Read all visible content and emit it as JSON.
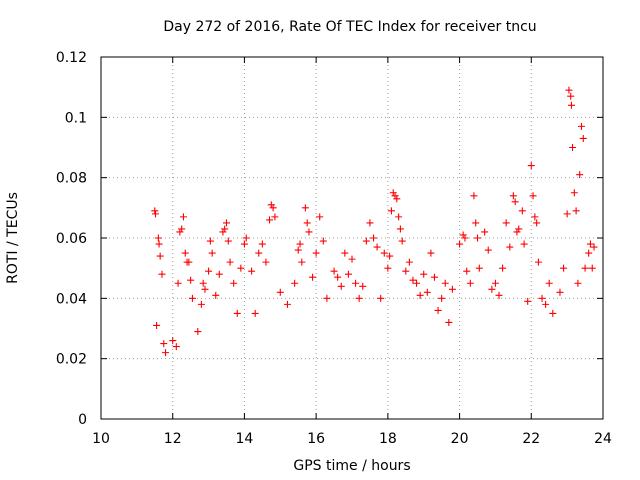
{
  "chart_data": {
    "type": "scatter",
    "title": "Day 272 of 2016, Rate Of TEC Index for receiver tncu",
    "xlabel": "GPS time / hours",
    "ylabel": "ROTI / TECUs",
    "xlim": [
      10,
      24
    ],
    "ylim": [
      0,
      0.12
    ],
    "x_ticks": [
      10,
      12,
      14,
      16,
      18,
      20,
      22,
      24
    ],
    "x_tick_labels": [
      "10",
      "12",
      "14",
      "16",
      "18",
      "20",
      "22",
      "24"
    ],
    "y_ticks": [
      0,
      0.02,
      0.04,
      0.06,
      0.08,
      0.1,
      0.12
    ],
    "y_tick_labels": [
      "0",
      "0.02",
      "0.04",
      "0.06",
      "0.08",
      "0.1",
      "0.12"
    ],
    "grid": true,
    "marker": "+",
    "color": "#ff0000",
    "series": [
      {
        "name": "ROTI",
        "points": [
          [
            11.5,
            0.069
          ],
          [
            11.52,
            0.068
          ],
          [
            11.55,
            0.031
          ],
          [
            11.6,
            0.06
          ],
          [
            11.62,
            0.058
          ],
          [
            11.65,
            0.054
          ],
          [
            11.7,
            0.048
          ],
          [
            11.75,
            0.025
          ],
          [
            11.8,
            0.022
          ],
          [
            12.0,
            0.026
          ],
          [
            12.1,
            0.024
          ],
          [
            12.15,
            0.045
          ],
          [
            12.2,
            0.062
          ],
          [
            12.25,
            0.063
          ],
          [
            12.3,
            0.067
          ],
          [
            12.35,
            0.055
          ],
          [
            12.4,
            0.052
          ],
          [
            12.45,
            0.052
          ],
          [
            12.5,
            0.046
          ],
          [
            12.55,
            0.04
          ],
          [
            12.7,
            0.029
          ],
          [
            12.8,
            0.038
          ],
          [
            12.85,
            0.045
          ],
          [
            12.9,
            0.043
          ],
          [
            13.0,
            0.049
          ],
          [
            13.05,
            0.059
          ],
          [
            13.1,
            0.055
          ],
          [
            13.2,
            0.041
          ],
          [
            13.3,
            0.048
          ],
          [
            13.4,
            0.062
          ],
          [
            13.45,
            0.063
          ],
          [
            13.5,
            0.065
          ],
          [
            13.55,
            0.059
          ],
          [
            13.6,
            0.052
          ],
          [
            13.7,
            0.045
          ],
          [
            13.8,
            0.035
          ],
          [
            13.9,
            0.05
          ],
          [
            14.0,
            0.058
          ],
          [
            14.05,
            0.06
          ],
          [
            14.2,
            0.049
          ],
          [
            14.3,
            0.035
          ],
          [
            14.4,
            0.055
          ],
          [
            14.5,
            0.058
          ],
          [
            14.6,
            0.052
          ],
          [
            14.7,
            0.066
          ],
          [
            14.75,
            0.071
          ],
          [
            14.8,
            0.07
          ],
          [
            14.85,
            0.067
          ],
          [
            15.0,
            0.042
          ],
          [
            15.2,
            0.038
          ],
          [
            15.4,
            0.045
          ],
          [
            15.5,
            0.056
          ],
          [
            15.55,
            0.058
          ],
          [
            15.6,
            0.052
          ],
          [
            15.7,
            0.07
          ],
          [
            15.75,
            0.065
          ],
          [
            15.8,
            0.062
          ],
          [
            15.9,
            0.047
          ],
          [
            16.0,
            0.055
          ],
          [
            16.1,
            0.067
          ],
          [
            16.2,
            0.059
          ],
          [
            16.3,
            0.04
          ],
          [
            16.5,
            0.049
          ],
          [
            16.6,
            0.047
          ],
          [
            16.7,
            0.044
          ],
          [
            16.8,
            0.055
          ],
          [
            16.9,
            0.048
          ],
          [
            17.0,
            0.053
          ],
          [
            17.1,
            0.045
          ],
          [
            17.2,
            0.04
          ],
          [
            17.3,
            0.044
          ],
          [
            17.4,
            0.059
          ],
          [
            17.5,
            0.065
          ],
          [
            17.6,
            0.06
          ],
          [
            17.7,
            0.057
          ],
          [
            17.8,
            0.04
          ],
          [
            17.9,
            0.055
          ],
          [
            18.0,
            0.05
          ],
          [
            18.05,
            0.054
          ],
          [
            18.1,
            0.069
          ],
          [
            18.15,
            0.075
          ],
          [
            18.2,
            0.074
          ],
          [
            18.25,
            0.073
          ],
          [
            18.3,
            0.067
          ],
          [
            18.35,
            0.063
          ],
          [
            18.4,
            0.059
          ],
          [
            18.5,
            0.049
          ],
          [
            18.6,
            0.052
          ],
          [
            18.7,
            0.046
          ],
          [
            18.8,
            0.045
          ],
          [
            18.9,
            0.041
          ],
          [
            19.0,
            0.048
          ],
          [
            19.1,
            0.042
          ],
          [
            19.2,
            0.055
          ],
          [
            19.3,
            0.047
          ],
          [
            19.4,
            0.036
          ],
          [
            19.5,
            0.04
          ],
          [
            19.6,
            0.045
          ],
          [
            19.7,
            0.032
          ],
          [
            19.8,
            0.043
          ],
          [
            20.0,
            0.058
          ],
          [
            20.1,
            0.061
          ],
          [
            20.15,
            0.06
          ],
          [
            20.2,
            0.049
          ],
          [
            20.3,
            0.045
          ],
          [
            20.4,
            0.074
          ],
          [
            20.45,
            0.065
          ],
          [
            20.5,
            0.06
          ],
          [
            20.55,
            0.05
          ],
          [
            20.7,
            0.062
          ],
          [
            20.8,
            0.056
          ],
          [
            20.9,
            0.043
          ],
          [
            21.0,
            0.045
          ],
          [
            21.1,
            0.041
          ],
          [
            21.2,
            0.05
          ],
          [
            21.3,
            0.065
          ],
          [
            21.4,
            0.057
          ],
          [
            21.5,
            0.074
          ],
          [
            21.55,
            0.072
          ],
          [
            21.6,
            0.062
          ],
          [
            21.65,
            0.063
          ],
          [
            21.75,
            0.069
          ],
          [
            21.8,
            0.058
          ],
          [
            21.9,
            0.039
          ],
          [
            22.0,
            0.084
          ],
          [
            22.05,
            0.074
          ],
          [
            22.1,
            0.067
          ],
          [
            22.15,
            0.065
          ],
          [
            22.2,
            0.052
          ],
          [
            22.3,
            0.04
          ],
          [
            22.4,
            0.038
          ],
          [
            22.5,
            0.045
          ],
          [
            22.6,
            0.035
          ],
          [
            22.8,
            0.042
          ],
          [
            22.9,
            0.05
          ],
          [
            23.0,
            0.068
          ],
          [
            23.05,
            0.109
          ],
          [
            23.1,
            0.107
          ],
          [
            23.12,
            0.104
          ],
          [
            23.15,
            0.09
          ],
          [
            23.2,
            0.075
          ],
          [
            23.25,
            0.069
          ],
          [
            23.3,
            0.045
          ],
          [
            23.35,
            0.081
          ],
          [
            23.4,
            0.097
          ],
          [
            23.45,
            0.093
          ],
          [
            23.5,
            0.05
          ],
          [
            23.6,
            0.055
          ],
          [
            23.65,
            0.058
          ],
          [
            23.7,
            0.05
          ],
          [
            23.75,
            0.057
          ]
        ]
      }
    ]
  }
}
